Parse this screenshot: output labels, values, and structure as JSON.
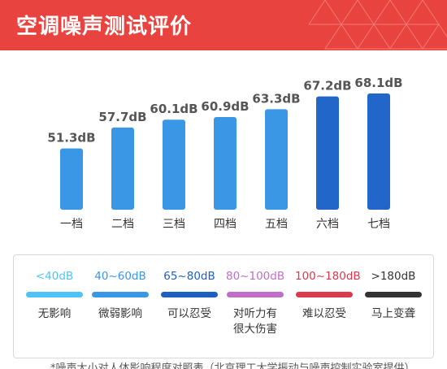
{
  "header": {
    "title": "空调噪声测试评价"
  },
  "chart_data": {
    "type": "bar",
    "categories": [
      "一档",
      "二档",
      "三档",
      "四档",
      "五档",
      "六档",
      "七档"
    ],
    "values": [
      51.3,
      57.7,
      60.1,
      60.9,
      63.3,
      67.2,
      68.1
    ],
    "value_labels": [
      "51.3dB",
      "57.7dB",
      "60.1dB",
      "60.9dB",
      "63.3dB",
      "67.2dB",
      "68.1dB"
    ],
    "bar_colors": [
      "#3a97e6",
      "#3a97e6",
      "#3a97e6",
      "#3a97e6",
      "#3a97e6",
      "#2266c9",
      "#2266c9"
    ],
    "title": "",
    "xlabel": "",
    "ylabel": "",
    "ylim": [
      40,
      70
    ],
    "grid": false
  },
  "legend": {
    "items": [
      {
        "range": "<40dB",
        "desc": [
          "无影响"
        ],
        "color": "#4fc3f7"
      },
      {
        "range": "40~60dB",
        "desc": [
          "微弱影响"
        ],
        "color": "#3a97e6"
      },
      {
        "range": "65~80dB",
        "desc": [
          "可以忍受"
        ],
        "color": "#1e5fbf"
      },
      {
        "range": "80~100dB",
        "desc": [
          "对听力有",
          "很大伤害"
        ],
        "color": "#bf6fc7"
      },
      {
        "range": "100~180dB",
        "desc": [
          "难以忍受"
        ],
        "color": "#d93a4c"
      },
      {
        "range": ">180dB",
        "desc": [
          "马上变聋"
        ],
        "color": "#333333"
      }
    ]
  },
  "footnote": "*噪声大小对人体影响程度对照表（北京理工大学振动与噪声控制实验室提供）"
}
